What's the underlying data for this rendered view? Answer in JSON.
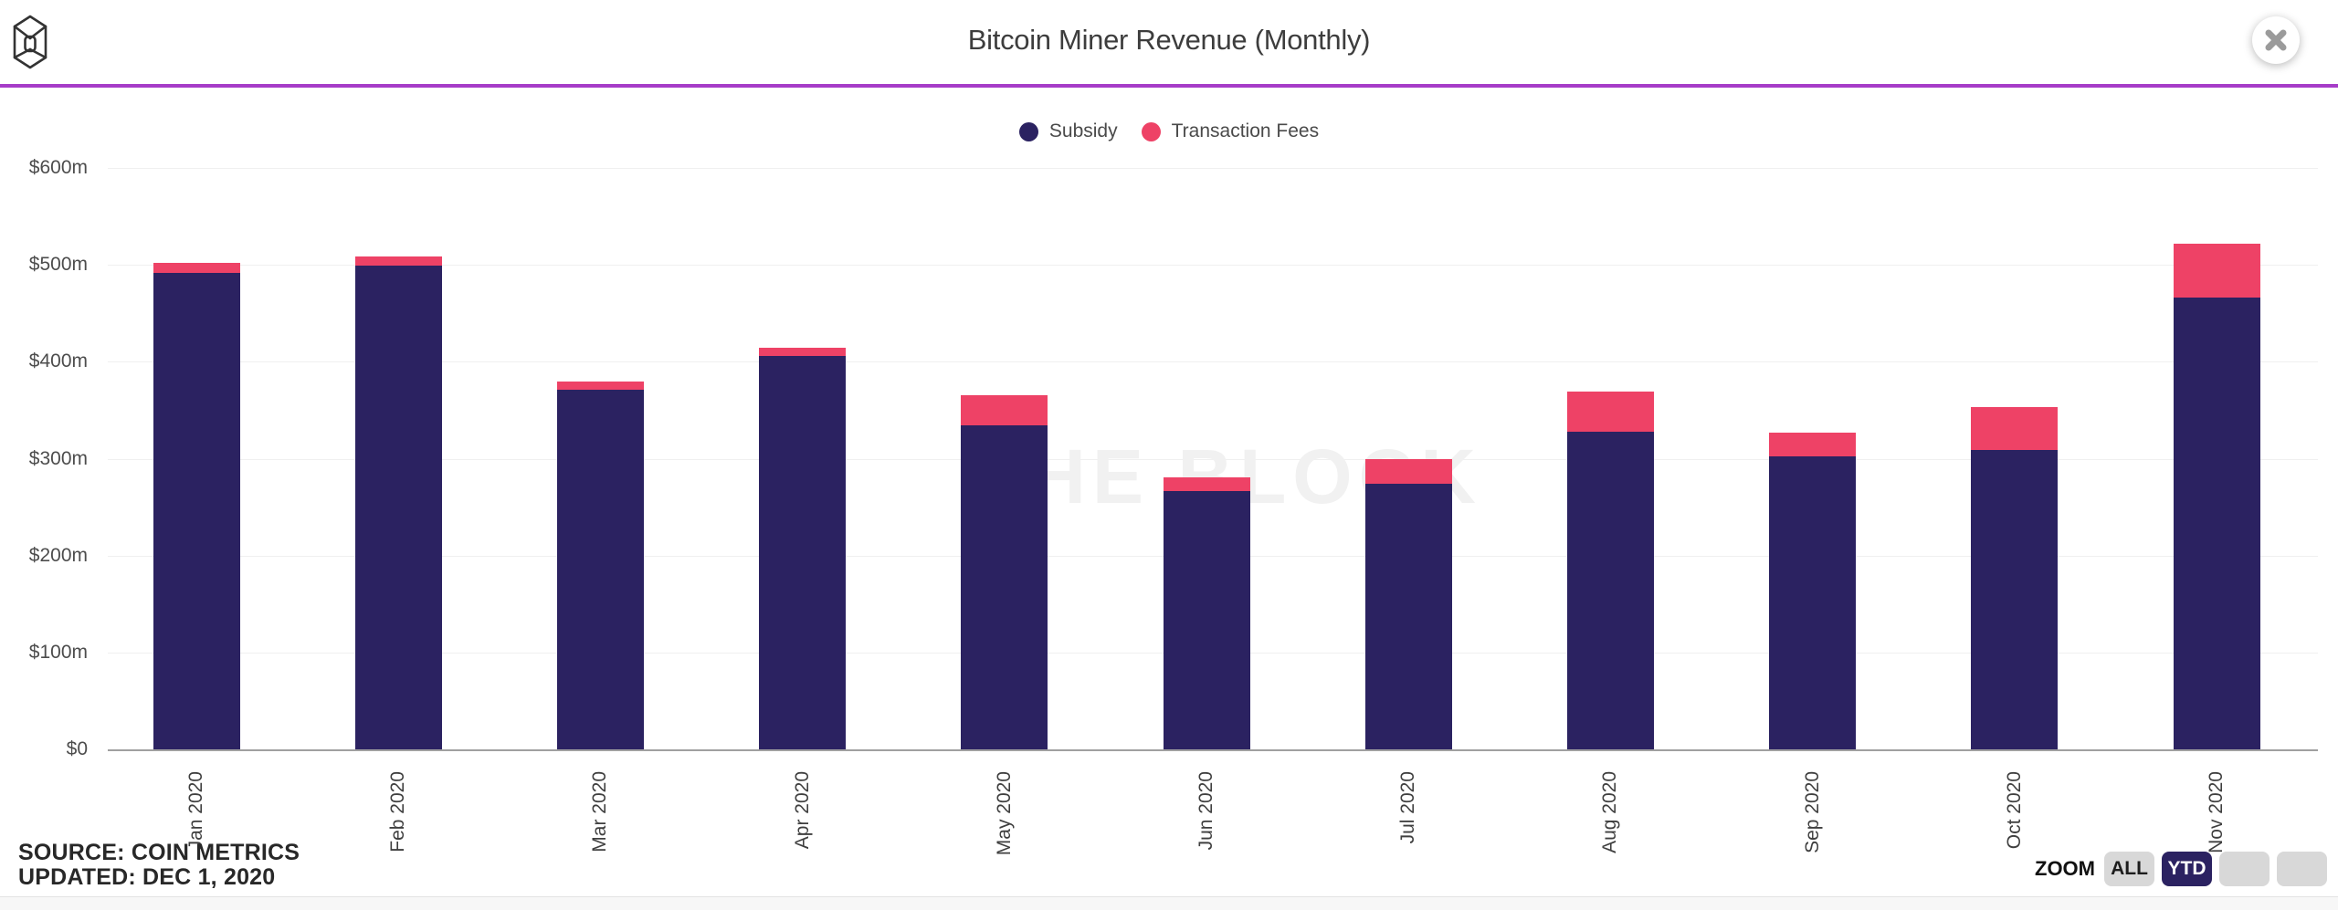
{
  "header": {
    "title": "Bitcoin Miner Revenue (Monthly)",
    "logo_name": "the-block-logo",
    "close_name": "close"
  },
  "legend": [
    {
      "label": "Subsidy",
      "color": "#2b2261"
    },
    {
      "label": "Transaction Fees",
      "color": "#ee4266"
    }
  ],
  "chart_data": {
    "type": "bar",
    "stacked": true,
    "title": "Bitcoin Miner Revenue (Monthly)",
    "categories": [
      "Jan 2020",
      "Feb 2020",
      "Mar 2020",
      "Apr 2020",
      "May 2020",
      "Jun 2020",
      "Jul 2020",
      "Aug 2020",
      "Sep 2020",
      "Oct 2020",
      "Nov 2020"
    ],
    "series": [
      {
        "name": "Subsidy",
        "color": "#2b2261",
        "values": [
          492,
          499,
          371,
          406,
          334,
          267,
          274,
          328,
          302,
          309,
          466
        ]
      },
      {
        "name": "Transaction Fees",
        "color": "#ee4266",
        "values": [
          10,
          10,
          9,
          8,
          31,
          14,
          26,
          41,
          25,
          44,
          56
        ]
      }
    ],
    "unit": "$m",
    "ylim": [
      0,
      600
    ],
    "y_ticks": [
      "$600m",
      "$500m",
      "$400m",
      "$300m",
      "$200m",
      "$100m",
      "$0"
    ],
    "x_label_rotation": -90,
    "grid": true,
    "legend_position": "top",
    "watermark": "THE BLOCK"
  },
  "footer": {
    "source": "SOURCE: COIN METRICS",
    "updated": "UPDATED: DEC 1, 2020"
  },
  "zoom_controls": {
    "label": "ZOOM",
    "buttons": [
      {
        "label": "ALL",
        "active": false
      },
      {
        "label": "YTD",
        "active": true
      },
      {
        "label": "",
        "active": false
      },
      {
        "label": "",
        "active": false
      }
    ]
  },
  "colors": {
    "subsidy": "#2b2261",
    "fees": "#ee4266",
    "header_rule": "#a63cc8",
    "watermark": "#f1f1f1",
    "active_button": "#2b2261"
  }
}
